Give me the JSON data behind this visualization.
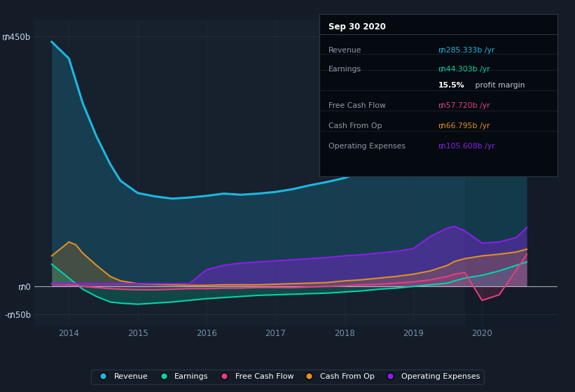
{
  "bg_color": "#131c27",
  "plot_bg_color": "#17202d",
  "grid_color": "#253040",
  "highlight_bg": "#1e2d40",
  "years_full": [
    2013.75,
    2014.0,
    2014.1,
    2014.2,
    2014.4,
    2014.6,
    2014.75,
    2015.0,
    2015.25,
    2015.5,
    2015.75,
    2016.0,
    2016.25,
    2016.5,
    2016.75,
    2017.0,
    2017.25,
    2017.5,
    2017.75,
    2018.0,
    2018.25,
    2018.5,
    2018.75,
    2019.0,
    2019.25,
    2019.5,
    2019.6,
    2019.75,
    2020.0,
    2020.25,
    2020.5,
    2020.65
  ],
  "revenue": [
    440,
    410,
    370,
    330,
    270,
    220,
    190,
    168,
    162,
    158,
    160,
    163,
    167,
    165,
    167,
    170,
    175,
    182,
    188,
    195,
    205,
    213,
    220,
    230,
    238,
    248,
    252,
    256,
    263,
    272,
    280,
    285
  ],
  "earnings": [
    40,
    15,
    5,
    -5,
    -18,
    -28,
    -30,
    -32,
    -30,
    -28,
    -25,
    -22,
    -20,
    -18,
    -16,
    -15,
    -14,
    -13,
    -12,
    -10,
    -8,
    -5,
    -3,
    0,
    3,
    6,
    10,
    15,
    20,
    28,
    38,
    44
  ],
  "free_cash_flow": [
    5,
    3,
    2,
    0,
    -2,
    -4,
    -5,
    -6,
    -6,
    -5,
    -4,
    -4,
    -3,
    -3,
    -2,
    -2,
    -2,
    -1,
    0,
    1,
    3,
    4,
    6,
    8,
    12,
    18,
    22,
    25,
    -25,
    -15,
    30,
    58
  ],
  "cash_from_op": [
    55,
    80,
    75,
    60,
    38,
    18,
    10,
    5,
    4,
    3,
    2,
    2,
    3,
    3,
    3,
    4,
    5,
    6,
    7,
    10,
    12,
    15,
    18,
    22,
    28,
    38,
    45,
    50,
    55,
    58,
    62,
    67
  ],
  "operating_expenses": [
    5,
    5,
    5,
    5,
    5,
    5,
    5,
    5,
    5,
    5,
    5,
    30,
    38,
    42,
    44,
    46,
    48,
    50,
    52,
    55,
    57,
    60,
    63,
    68,
    90,
    105,
    108,
    100,
    78,
    80,
    88,
    106
  ],
  "revenue_color": "#1cb8e0",
  "earnings_color": "#00d4a8",
  "free_cash_flow_color": "#e04080",
  "cash_from_op_color": "#e09020",
  "operating_expenses_color": "#8820e8",
  "ylim_min": -70,
  "ylim_max": 480,
  "xlim_min": 2013.5,
  "xlim_max": 2021.1,
  "ytick_vals": [
    -50,
    0,
    450
  ],
  "ytick_labels": [
    "-₥50b",
    "₥0",
    "₥450b"
  ],
  "xtick_vals": [
    2014,
    2015,
    2016,
    2017,
    2018,
    2019,
    2020
  ],
  "xtick_labels": [
    "2014",
    "2015",
    "2016",
    "2017",
    "2018",
    "2019",
    "2020"
  ],
  "highlight_start": 2019.75,
  "tooltip_title": "Sep 30 2020",
  "tooltip_rows": [
    {
      "label": "Revenue",
      "value": "₥285.333b /yr",
      "color": "#1cb8e0"
    },
    {
      "label": "Earnings",
      "value": "₥44.303b /yr",
      "color": "#00d4a8"
    },
    {
      "label": "",
      "value": "15.5% profit margin",
      "color": "#ffffff"
    },
    {
      "label": "Free Cash Flow",
      "value": "₥57.720b /yr",
      "color": "#e04080"
    },
    {
      "label": "Cash From Op",
      "value": "₥66.795b /yr",
      "color": "#e09020"
    },
    {
      "label": "Operating Expenses",
      "value": "₥105.608b /yr",
      "color": "#8820e8"
    }
  ],
  "legend_items": [
    {
      "label": "Revenue",
      "color": "#1cb8e0"
    },
    {
      "label": "Earnings",
      "color": "#00d4a8"
    },
    {
      "label": "Free Cash Flow",
      "color": "#e04080"
    },
    {
      "label": "Cash From Op",
      "color": "#e09020"
    },
    {
      "label": "Operating Expenses",
      "color": "#8820e8"
    }
  ]
}
